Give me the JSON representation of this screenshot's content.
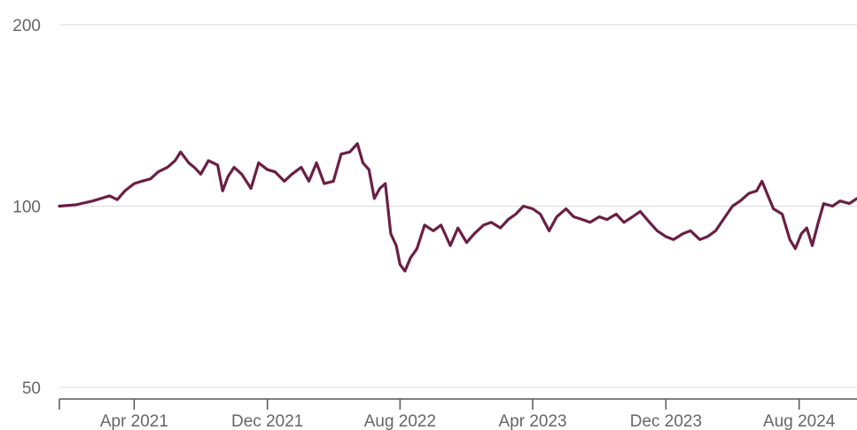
{
  "colors": {
    "series": "#6b1f45",
    "grid": "#dcdcdc",
    "axis": "#555555",
    "tick_text": "#666666",
    "background": "#ffffff"
  },
  "chart_data": {
    "type": "line",
    "title": "",
    "xlabel": "",
    "ylabel": "",
    "y_scale": "log",
    "ylim": [
      50,
      200
    ],
    "xlim": [
      "2020-11-15",
      "2024-11-15"
    ],
    "grid": {
      "y": true,
      "x": false
    },
    "legend": "none",
    "y_ticks": [
      {
        "value": 50,
        "label": "50"
      },
      {
        "value": 100,
        "label": "100"
      },
      {
        "value": 200,
        "label": "200"
      }
    ],
    "x_ticks": [
      {
        "date": "2020-11-15",
        "label": ""
      },
      {
        "date": "2021-04-01",
        "label": "Apr 2021"
      },
      {
        "date": "2021-12-01",
        "label": "Dec 2021"
      },
      {
        "date": "2022-08-01",
        "label": "Aug 2022"
      },
      {
        "date": "2023-04-01",
        "label": "Apr 2023"
      },
      {
        "date": "2023-12-01",
        "label": "Dec 2023"
      },
      {
        "date": "2024-08-01",
        "label": "Aug 2024"
      }
    ],
    "series": [
      {
        "color": "#6b1f45",
        "points": [
          [
            "2020-11-15",
            100
          ],
          [
            "2020-12-15",
            100.5
          ],
          [
            "2021-01-15",
            102
          ],
          [
            "2021-02-15",
            104
          ],
          [
            "2021-03-01",
            102.5
          ],
          [
            "2021-03-15",
            106
          ],
          [
            "2021-04-01",
            109
          ],
          [
            "2021-04-15",
            110
          ],
          [
            "2021-05-01",
            111
          ],
          [
            "2021-05-15",
            114
          ],
          [
            "2021-06-01",
            116
          ],
          [
            "2021-06-15",
            119
          ],
          [
            "2021-06-25",
            123
          ],
          [
            "2021-07-10",
            118
          ],
          [
            "2021-07-20",
            116
          ],
          [
            "2021-08-01",
            113
          ],
          [
            "2021-08-15",
            119
          ],
          [
            "2021-09-01",
            117
          ],
          [
            "2021-09-10",
            106
          ],
          [
            "2021-09-20",
            112
          ],
          [
            "2021-10-01",
            116
          ],
          [
            "2021-10-15",
            113
          ],
          [
            "2021-11-01",
            107
          ],
          [
            "2021-11-15",
            118
          ],
          [
            "2021-12-01",
            115
          ],
          [
            "2021-12-15",
            114
          ],
          [
            "2022-01-01",
            110
          ],
          [
            "2022-01-15",
            113
          ],
          [
            "2022-02-01",
            116
          ],
          [
            "2022-02-15",
            110
          ],
          [
            "2022-03-01",
            118
          ],
          [
            "2022-03-15",
            109
          ],
          [
            "2022-04-01",
            110
          ],
          [
            "2022-04-15",
            122
          ],
          [
            "2022-05-01",
            123
          ],
          [
            "2022-05-15",
            127
          ],
          [
            "2022-05-25",
            118
          ],
          [
            "2022-06-05",
            115
          ],
          [
            "2022-06-15",
            103
          ],
          [
            "2022-06-25",
            107
          ],
          [
            "2022-07-05",
            109
          ],
          [
            "2022-07-15",
            90
          ],
          [
            "2022-07-25",
            86
          ],
          [
            "2022-08-01",
            80
          ],
          [
            "2022-08-10",
            78
          ],
          [
            "2022-08-20",
            82
          ],
          [
            "2022-09-01",
            85
          ],
          [
            "2022-09-15",
            93
          ],
          [
            "2022-10-01",
            91
          ],
          [
            "2022-10-15",
            93
          ],
          [
            "2022-11-01",
            86
          ],
          [
            "2022-11-15",
            92
          ],
          [
            "2022-12-01",
            87
          ],
          [
            "2022-12-15",
            90
          ],
          [
            "2023-01-01",
            93
          ],
          [
            "2023-01-15",
            94
          ],
          [
            "2023-02-01",
            92
          ],
          [
            "2023-02-15",
            95
          ],
          [
            "2023-03-01",
            97
          ],
          [
            "2023-03-15",
            100
          ],
          [
            "2023-04-01",
            99
          ],
          [
            "2023-04-15",
            97
          ],
          [
            "2023-05-01",
            91
          ],
          [
            "2023-05-15",
            96
          ],
          [
            "2023-06-01",
            99
          ],
          [
            "2023-06-15",
            96
          ],
          [
            "2023-07-01",
            95
          ],
          [
            "2023-07-15",
            94
          ],
          [
            "2023-08-01",
            96
          ],
          [
            "2023-08-15",
            95
          ],
          [
            "2023-09-01",
            97
          ],
          [
            "2023-09-15",
            94
          ],
          [
            "2023-10-01",
            96
          ],
          [
            "2023-10-15",
            98
          ],
          [
            "2023-11-01",
            94
          ],
          [
            "2023-11-15",
            91
          ],
          [
            "2023-12-01",
            89
          ],
          [
            "2023-12-15",
            88
          ],
          [
            "2024-01-01",
            90
          ],
          [
            "2024-01-15",
            91
          ],
          [
            "2024-02-01",
            88
          ],
          [
            "2024-02-15",
            89
          ],
          [
            "2024-03-01",
            91
          ],
          [
            "2024-03-15",
            95
          ],
          [
            "2024-04-01",
            100
          ],
          [
            "2024-04-15",
            102
          ],
          [
            "2024-05-01",
            105
          ],
          [
            "2024-05-15",
            106
          ],
          [
            "2024-05-25",
            110
          ],
          [
            "2024-06-05",
            104
          ],
          [
            "2024-06-15",
            99
          ],
          [
            "2024-07-01",
            97
          ],
          [
            "2024-07-15",
            88
          ],
          [
            "2024-07-25",
            85
          ],
          [
            "2024-08-05",
            90
          ],
          [
            "2024-08-15",
            92
          ],
          [
            "2024-08-25",
            86
          ],
          [
            "2024-09-05",
            94
          ],
          [
            "2024-09-15",
            101
          ],
          [
            "2024-10-01",
            100
          ],
          [
            "2024-10-15",
            102
          ],
          [
            "2024-11-01",
            101
          ],
          [
            "2024-11-15",
            103
          ]
        ]
      }
    ]
  }
}
